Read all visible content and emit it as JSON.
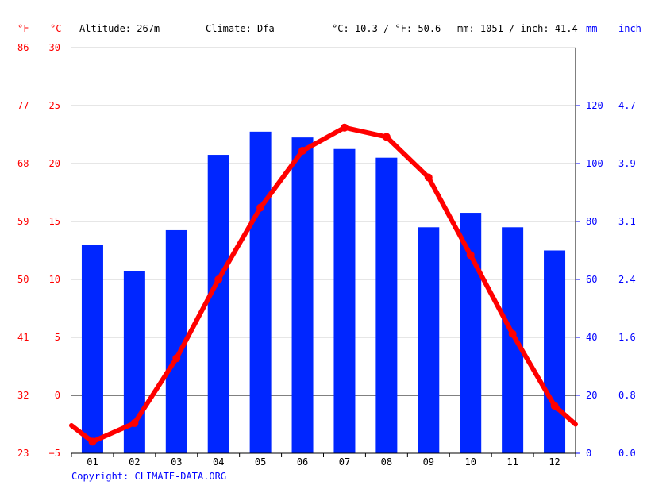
{
  "header": {
    "f_unit": "°F",
    "c_unit": "°C",
    "altitude": "Altitude: 267m",
    "climate": "Climate: Dfa",
    "temp_avg": "°C: 10.3 / °F: 50.6",
    "precip_total": "mm: 1051 / inch: 41.4",
    "mm_unit": "mm",
    "inch_unit": "inch"
  },
  "footer": {
    "copyright": "Copyright: CLIMATE-DATA.ORG"
  },
  "colors": {
    "temperature": "#ff0000",
    "precipitation": "#0026ff",
    "axis_blue": "#0000ff",
    "grid": "#cccccc",
    "zero_line": "#000000"
  },
  "chart_data": {
    "type": "bar",
    "categories": [
      "01",
      "02",
      "03",
      "04",
      "05",
      "06",
      "07",
      "08",
      "09",
      "10",
      "11",
      "12"
    ],
    "series": [
      {
        "type": "bar",
        "axis": "mm",
        "values": [
          72,
          63,
          77,
          103,
          111,
          109,
          105,
          102,
          78,
          83,
          78,
          70
        ]
      },
      {
        "type": "line",
        "axis": "celsius",
        "values": [
          -4.0,
          -2.4,
          3.2,
          10.0,
          16.2,
          21.1,
          23.1,
          22.3,
          18.8,
          12.1,
          5.3,
          -0.9
        ],
        "edge_start": -2.6,
        "edge_end": -2.5
      }
    ],
    "y_left_celsius": {
      "range": [
        -5,
        30
      ],
      "ticks": [
        "30",
        "25",
        "20",
        "15",
        "10",
        "5",
        "0",
        "−5"
      ]
    },
    "y_left_fahrenheit": {
      "ticks": [
        "86",
        "77",
        "68",
        "59",
        "50",
        "41",
        "32",
        "23"
      ]
    },
    "y_right_mm": {
      "range": [
        0,
        140
      ],
      "ticks": [
        "120",
        "100",
        "80",
        "60",
        "40",
        "20",
        "0"
      ]
    },
    "y_right_inch": {
      "ticks": [
        "4.7",
        "3.9",
        "3.1",
        "2.4",
        "1.6",
        "0.8",
        "0.0"
      ]
    },
    "grid": true,
    "legend": "none"
  }
}
